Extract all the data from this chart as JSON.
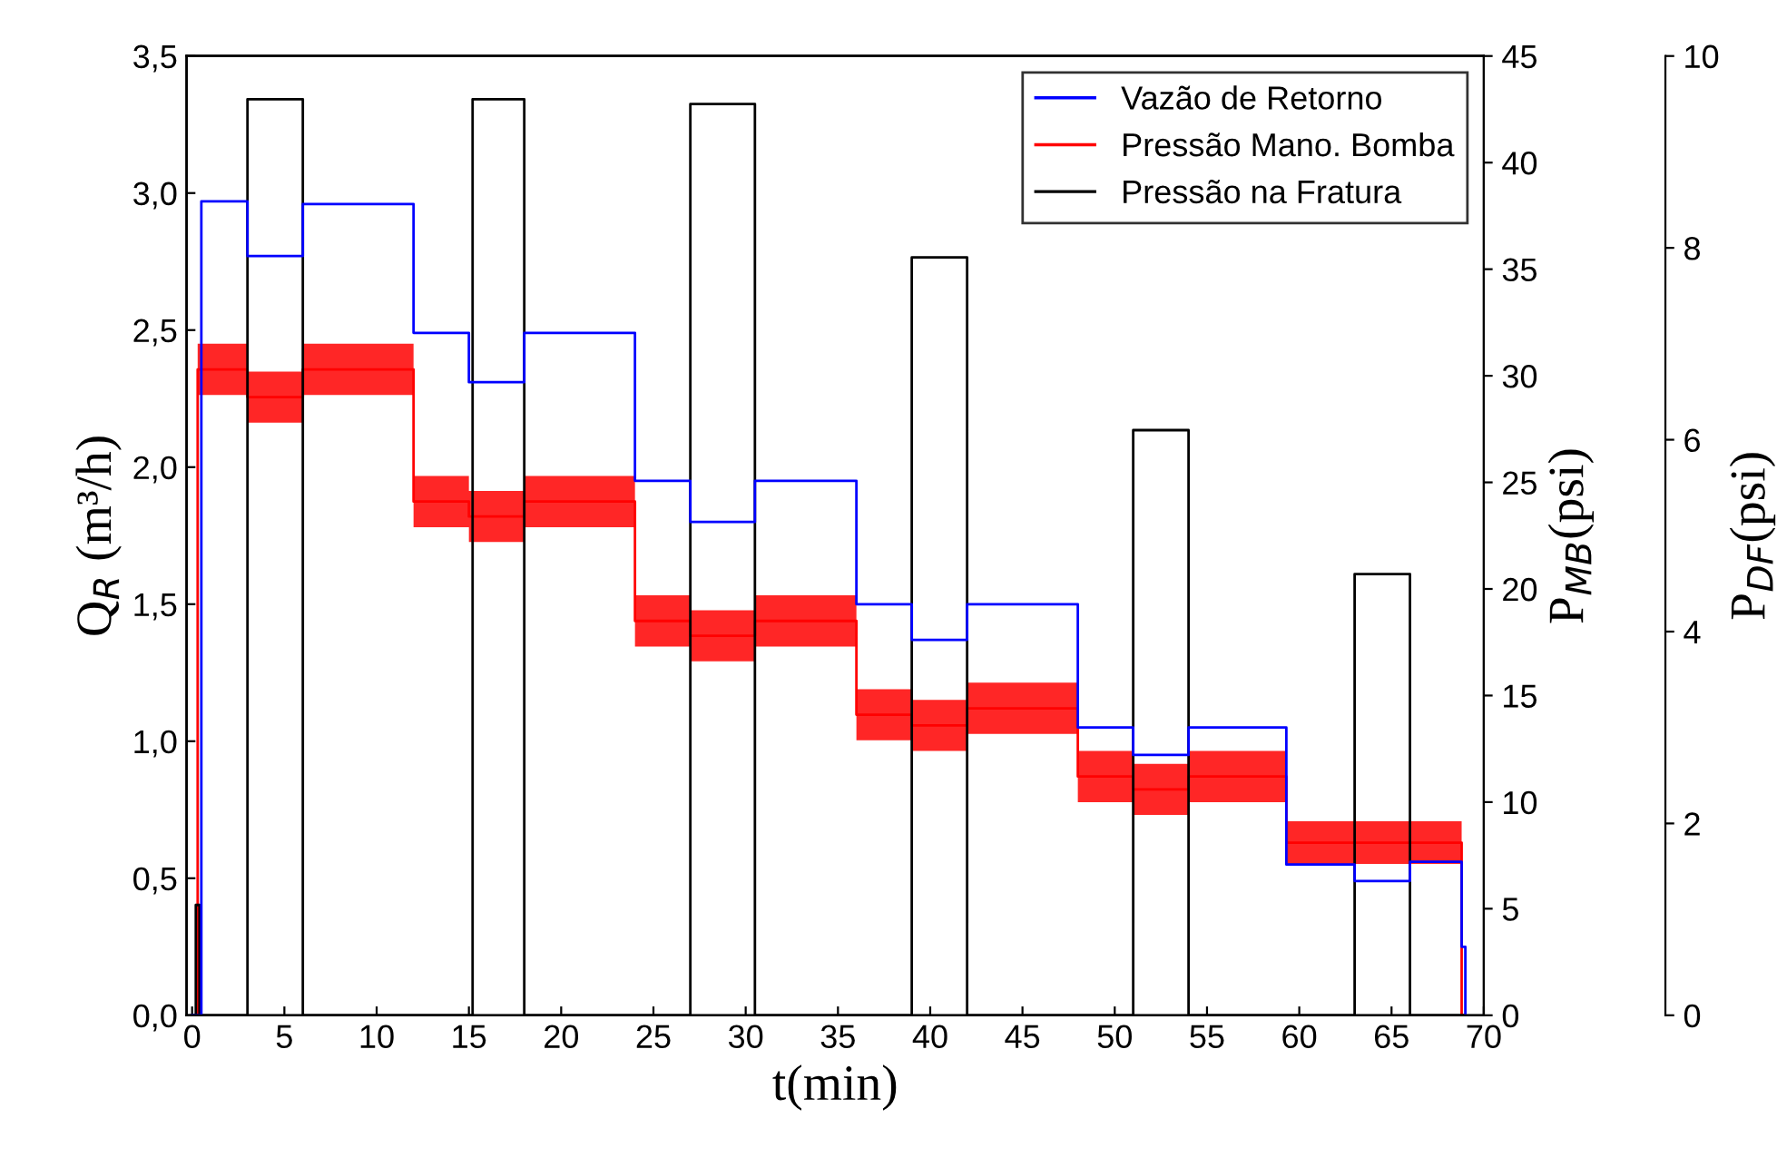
{
  "chart_data": {
    "type": "step",
    "xlabel": "t(min)",
    "ylabel": "Q$_{R}$ (m³/h)",
    "y2label": "P$_{MB}$(psi)",
    "y3label": "P$_{DF}$(psi)",
    "xlim": [
      -0.3,
      70
    ],
    "xticks": [
      0,
      5,
      10,
      15,
      20,
      25,
      30,
      35,
      40,
      45,
      50,
      55,
      60,
      65,
      70
    ],
    "ylim": [
      0,
      3.5
    ],
    "yticks": [
      {
        "value": 0,
        "label": "0,0"
      },
      {
        "value": 0.5,
        "label": "0,5"
      },
      {
        "value": 1,
        "label": "1,0"
      },
      {
        "value": 1.5,
        "label": "1,5"
      },
      {
        "value": 2,
        "label": "2,0"
      },
      {
        "value": 2.5,
        "label": "2,5"
      },
      {
        "value": 3,
        "label": "3,0"
      },
      {
        "value": 3.5,
        "label": "3,5"
      }
    ],
    "y2lim": [
      0,
      45
    ],
    "y2ticks": [
      0,
      5,
      10,
      15,
      20,
      25,
      30,
      35,
      40,
      45
    ],
    "y3lim": [
      0,
      10
    ],
    "y3ticks": [
      0,
      2,
      4,
      6,
      8,
      10
    ],
    "grid": false,
    "legend": "top right",
    "series": [
      {
        "name": "Vazão de Retorno",
        "color": "#0000ff",
        "axis": "y",
        "x": [
          0,
          0.5,
          3,
          6,
          12,
          15,
          18,
          24,
          27,
          30.5,
          36,
          39,
          42,
          48,
          51,
          54,
          59.3,
          63,
          66,
          68.8,
          69
        ],
        "values": [
          0,
          2.97,
          2.77,
          2.96,
          2.49,
          2.31,
          2.49,
          1.95,
          1.8,
          1.95,
          1.5,
          1.37,
          1.5,
          1.05,
          0.95,
          1.05,
          0.55,
          0.49,
          0.56,
          0.25,
          0
        ]
      },
      {
        "name": "Pressão Mano. Bomba",
        "color": "#ff0000",
        "axis": "y2",
        "x": [
          0,
          0.3,
          3,
          6,
          12,
          15,
          18,
          24,
          27,
          30.5,
          36,
          39,
          42,
          48,
          51,
          54,
          59.3,
          68.8,
          69
        ],
        "values": [
          0,
          30.3,
          29.0,
          30.3,
          24.1,
          23.4,
          24.1,
          18.5,
          17.8,
          18.5,
          14.1,
          13.6,
          14.4,
          11.2,
          10.6,
          11.2,
          8.1,
          0,
          0
        ],
        "lower": [
          0,
          29.1,
          27.8,
          29.1,
          22.9,
          22.2,
          22.9,
          17.3,
          16.6,
          17.3,
          12.9,
          12.4,
          13.2,
          10.0,
          9.4,
          10.0,
          7.1,
          0,
          0
        ],
        "upper": [
          0,
          31.5,
          30.2,
          31.5,
          25.3,
          24.6,
          25.3,
          19.7,
          19.0,
          19.7,
          15.3,
          14.8,
          15.6,
          12.4,
          11.8,
          12.4,
          9.1,
          0,
          0
        ]
      },
      {
        "name": "Pressão na Fratura",
        "color": "#000000",
        "axis": "y3",
        "x": [
          0,
          0.2,
          0.4,
          3,
          6,
          15.2,
          18,
          27,
          30.5,
          39,
          42,
          51,
          54,
          63,
          66,
          69
        ],
        "values": [
          0,
          1.15,
          0,
          9.55,
          0,
          9.55,
          0,
          9.5,
          0,
          7.9,
          0,
          6.1,
          0,
          4.6,
          0,
          0
        ]
      }
    ]
  }
}
